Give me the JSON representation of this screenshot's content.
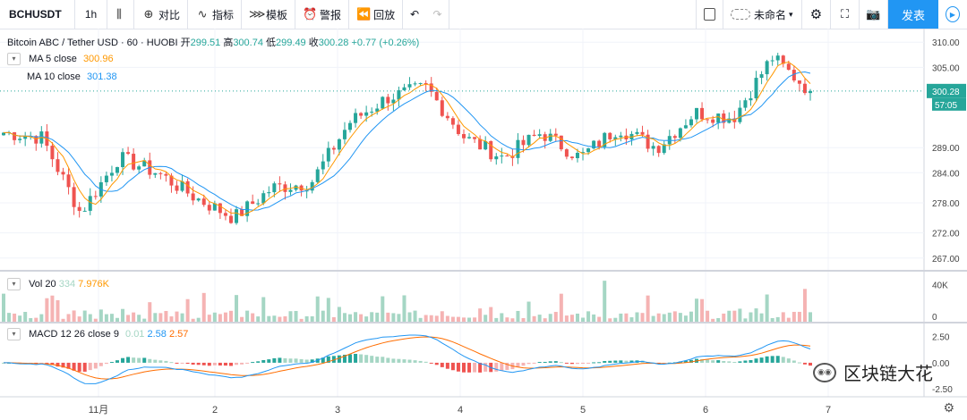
{
  "toolbar": {
    "symbol": "BCHUSDT",
    "interval": "1h",
    "compare": "对比",
    "indicators": "指标",
    "templates": "模板",
    "alert": "警报",
    "replay": "回放",
    "layout_name": "未命名",
    "publish": "发表"
  },
  "legend": {
    "title": "Bitcoin ABC / Tether USD · 60 · HUOBI",
    "open_label": "开",
    "open": "299.51",
    "high_label": "高",
    "high": "300.74",
    "low_label": "低",
    "low": "299.49",
    "close_label": "收",
    "close": "300.28",
    "change": "+0.77 (+0.26%)",
    "ma5_label": "MA  5 close",
    "ma5_value": "300.96",
    "ma10_label": "MA  10 close",
    "ma10_value": "301.38",
    "vol_label": "Vol  20",
    "vol_value1": "334",
    "vol_value2": "7.976K",
    "macd_label": "MACD  12 26 close 9",
    "macd_hist": "0.01",
    "macd_line": "2.58",
    "macd_signal": "2.57"
  },
  "price_axis": {
    "ticks": [
      "310.00",
      "305.00",
      "289.00",
      "284.00",
      "278.00",
      "272.00",
      "267.00"
    ],
    "last_price": "300.28",
    "countdown": "57:05"
  },
  "volume_axis": {
    "ticks": [
      "40K",
      "0"
    ]
  },
  "macd_axis": {
    "ticks": [
      "2.50",
      "0.00",
      "-2.50"
    ]
  },
  "time_axis": {
    "ticks": [
      "11月",
      "2",
      "3",
      "4",
      "5",
      "6",
      "7"
    ]
  },
  "watermark": "区块链大花",
  "colors": {
    "up": "#26a69a",
    "down": "#ef5350",
    "ma5": "#ff9800",
    "ma10": "#2196f3",
    "vol_up": "#a5d6c4",
    "vol_down": "#f5b3b3",
    "macd_line": "#2196f3",
    "macd_signal": "#ff6d00"
  },
  "chart_data": {
    "type": "candlestick",
    "title": "Bitcoin ABC / Tether USD · 60 · HUOBI",
    "x_days": [
      "11月",
      "2",
      "3",
      "4",
      "5",
      "6",
      "7"
    ],
    "price_ylim": [
      265,
      312
    ],
    "price_ohlc_anchors": [
      {
        "x": "10/31 18:00",
        "close": 292
      },
      {
        "x": "11/1 00:00",
        "close": 291
      },
      {
        "x": "11/1 04:00",
        "close": 276
      },
      {
        "x": "11/1 10:00",
        "close": 287
      },
      {
        "x": "11/1 18:00",
        "close": 284
      },
      {
        "x": "11/2 00:00",
        "close": 279
      },
      {
        "x": "11/2 06:00",
        "close": 275
      },
      {
        "x": "11/2 18:00",
        "close": 281
      },
      {
        "x": "11/3 00:00",
        "close": 282
      },
      {
        "x": "11/3 06:00",
        "close": 294
      },
      {
        "x": "11/3 12:00",
        "close": 299
      },
      {
        "x": "11/3 16:00",
        "close": 301
      },
      {
        "x": "11/4 00:00",
        "close": 291
      },
      {
        "x": "11/4 06:00",
        "close": 287
      },
      {
        "x": "11/4 12:00",
        "close": 292
      },
      {
        "x": "11/5 00:00",
        "close": 287
      },
      {
        "x": "11/5 08:00",
        "close": 293
      },
      {
        "x": "11/5 16:00",
        "close": 289
      },
      {
        "x": "11/6 00:00",
        "close": 296
      },
      {
        "x": "11/6 12:00",
        "close": 295
      },
      {
        "x": "11/6 18:00",
        "close": 307
      },
      {
        "x": "11/6 22:00",
        "close": 300.28
      }
    ],
    "ma5_last": 300.96,
    "ma10_last": 301.38,
    "volume_ylim": [
      0,
      50000
    ],
    "macd_ylim": [
      -3,
      3.5
    ],
    "macd_last": {
      "hist": 0.01,
      "macd": 2.58,
      "signal": 2.57
    }
  }
}
